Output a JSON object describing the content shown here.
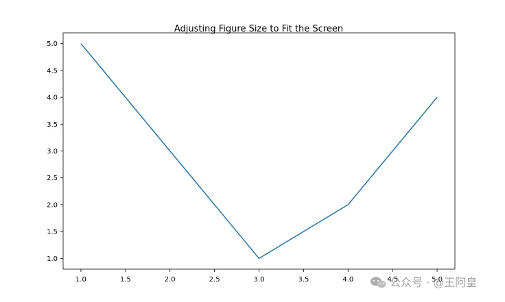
{
  "chart_data": {
    "type": "line",
    "title": "Adjusting Figure Size to Fit the Screen",
    "xlabel": "",
    "ylabel": "",
    "x": [
      1.0,
      2.0,
      3.0,
      4.0,
      5.0
    ],
    "series": [
      {
        "values": [
          5.0,
          3.0,
          1.0,
          2.0,
          4.0
        ],
        "color": "#1f77b4"
      }
    ],
    "xlim": [
      0.8,
      5.2
    ],
    "ylim": [
      0.8,
      5.2
    ],
    "xticks": [
      "1.0",
      "1.5",
      "2.0",
      "2.5",
      "3.0",
      "3.5",
      "4.0",
      "4.5",
      "5.0"
    ],
    "yticks": [
      "1.0",
      "1.5",
      "2.0",
      "2.5",
      "3.0",
      "3.5",
      "4.0",
      "4.5",
      "5.0"
    ],
    "grid": false,
    "legend": "none"
  },
  "watermark": {
    "text": "公众号 · @王阿皇",
    "icon": "wechat-icon"
  }
}
